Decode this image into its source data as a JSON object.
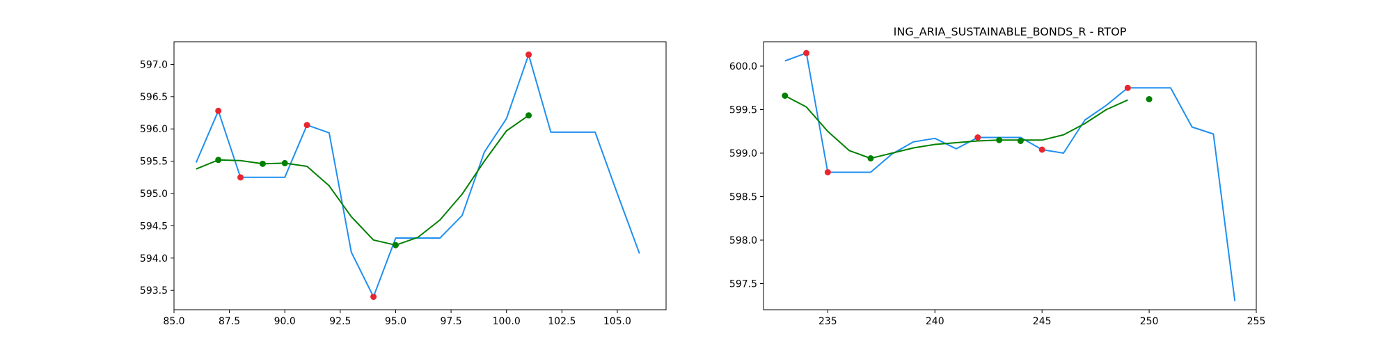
{
  "colors": {
    "raw": "#1f8ff0",
    "smooth": "#008000",
    "peak": "#e8262f",
    "trough": "#008000"
  },
  "chart_data": [
    {
      "type": "line",
      "title": "",
      "xlabel": "",
      "ylabel": "",
      "xlim": [
        85,
        107.2
      ],
      "ylim": [
        593.2,
        597.35
      ],
      "xticks": [
        85.0,
        87.5,
        90.0,
        92.5,
        95.0,
        97.5,
        100.0,
        102.5,
        105.0
      ],
      "xtick_labels": [
        "85.0",
        "87.5",
        "90.0",
        "92.5",
        "95.0",
        "97.5",
        "100.0",
        "102.5",
        "105.0"
      ],
      "yticks": [
        593.5,
        594.0,
        594.5,
        595.0,
        595.5,
        596.0,
        596.5,
        597.0
      ],
      "ytick_labels": [
        "593.5",
        "594.0",
        "594.5",
        "595.0",
        "595.5",
        "596.0",
        "596.5",
        "597.0"
      ],
      "series": [
        {
          "role": "raw",
          "type": "line",
          "x": [
            86,
            87,
            88,
            89,
            90,
            91,
            92,
            93,
            94,
            95,
            96,
            97,
            98,
            99,
            100,
            101,
            102,
            103,
            104,
            105,
            106
          ],
          "y": [
            595.48,
            596.28,
            595.25,
            595.25,
            595.25,
            596.06,
            595.94,
            594.09,
            593.4,
            594.31,
            594.31,
            594.31,
            594.66,
            595.64,
            596.16,
            597.15,
            595.95,
            595.95,
            595.95,
            595.0,
            594.07
          ]
        },
        {
          "role": "smooth",
          "type": "line",
          "x": [
            86,
            87,
            88,
            89,
            90,
            91,
            92,
            93,
            94,
            95,
            96,
            97,
            98,
            99,
            100,
            101
          ],
          "y": [
            595.38,
            595.52,
            595.51,
            595.46,
            595.47,
            595.42,
            595.12,
            594.64,
            594.28,
            594.2,
            594.32,
            594.59,
            594.99,
            595.5,
            595.97,
            596.21
          ]
        },
        {
          "role": "peak",
          "type": "scatter",
          "x": [
            87,
            88,
            91,
            94,
            101
          ],
          "y": [
            596.28,
            595.25,
            596.06,
            593.4,
            597.15
          ]
        },
        {
          "role": "trough",
          "type": "scatter",
          "x": [
            87,
            89,
            90,
            95,
            101
          ],
          "y": [
            595.52,
            595.46,
            595.47,
            594.2,
            596.21
          ]
        }
      ]
    },
    {
      "type": "line",
      "title": "ING_ARIA_SUSTAINABLE_BONDS_R - RTOP",
      "xlabel": "",
      "ylabel": "",
      "xlim": [
        232,
        255
      ],
      "ylim": [
        597.2,
        600.28
      ],
      "xticks": [
        235,
        240,
        245,
        250,
        255
      ],
      "xtick_labels": [
        "235",
        "240",
        "245",
        "250",
        "255"
      ],
      "yticks": [
        597.5,
        598.0,
        598.5,
        599.0,
        599.5,
        600.0
      ],
      "ytick_labels": [
        "597.5",
        "598.0",
        "598.5",
        "599.0",
        "599.5",
        "600.0"
      ],
      "series": [
        {
          "role": "raw",
          "type": "line",
          "x": [
            233,
            234,
            235,
            236,
            237,
            238,
            239,
            240,
            241,
            242,
            243,
            244,
            245,
            246,
            247,
            248,
            249,
            250,
            251,
            252,
            253,
            254
          ],
          "y": [
            600.06,
            600.15,
            598.78,
            598.78,
            598.78,
            598.99,
            599.13,
            599.17,
            599.05,
            599.18,
            599.18,
            599.18,
            599.04,
            599.0,
            599.38,
            599.55,
            599.75,
            599.75,
            599.75,
            599.3,
            599.22,
            597.3
          ]
        },
        {
          "role": "smooth",
          "type": "line",
          "x": [
            233,
            234,
            235,
            236,
            237,
            238,
            239,
            240,
            241,
            242,
            243,
            244,
            245,
            246,
            247,
            248,
            249
          ],
          "y": [
            599.66,
            599.53,
            599.25,
            599.03,
            598.94,
            599.0,
            599.06,
            599.1,
            599.12,
            599.14,
            599.15,
            599.15,
            599.15,
            599.21,
            599.34,
            599.5,
            599.61
          ]
        },
        {
          "role": "peak",
          "type": "scatter",
          "x": [
            234,
            235,
            242,
            245,
            249
          ],
          "y": [
            600.15,
            598.78,
            599.18,
            599.04,
            599.75
          ]
        },
        {
          "role": "trough",
          "type": "scatter",
          "x": [
            233,
            237,
            243,
            244,
            250
          ],
          "y": [
            599.66,
            598.94,
            599.15,
            599.14,
            599.62
          ]
        }
      ]
    }
  ]
}
